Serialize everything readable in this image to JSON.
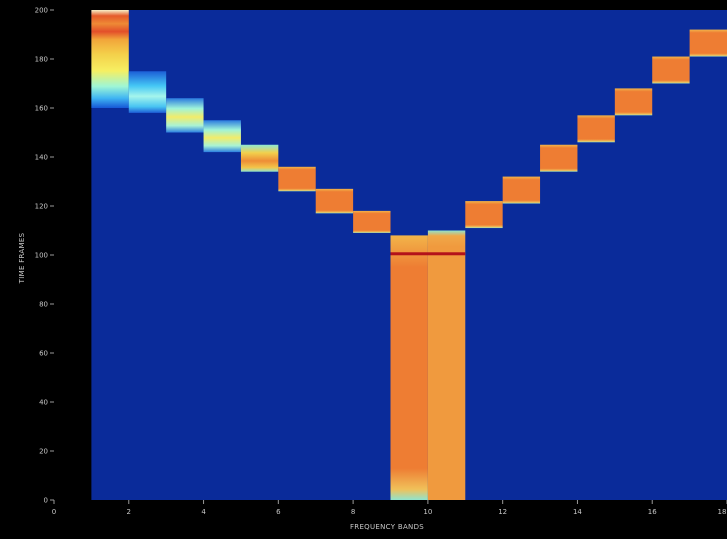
{
  "chart_data": {
    "type": "heatmap",
    "title": "",
    "xlabel": "FREQUENCY BANDS",
    "ylabel": "TIME FRAMES",
    "xlim": [
      0,
      18
    ],
    "ylim": [
      0,
      200
    ],
    "x_ticks": [
      "0",
      "2",
      "4",
      "6",
      "8",
      "10",
      "12",
      "14",
      "16",
      "18"
    ],
    "y_ticks": [
      "0",
      "20",
      "40",
      "60",
      "80",
      "100",
      "120",
      "140",
      "160",
      "180",
      "200"
    ],
    "x_tick_values": [
      0,
      2,
      4,
      6,
      8,
      10,
      12,
      14,
      16,
      18
    ],
    "y_tick_values": [
      0,
      20,
      40,
      60,
      80,
      100,
      120,
      140,
      160,
      180,
      200
    ],
    "data_region": {
      "x": [
        1,
        18
      ],
      "y": [
        0,
        200
      ]
    },
    "colors": {
      "background": "#0a2b9a",
      "frame": "#000000",
      "cell": "#ee7d33",
      "cell_light": "#f09a3e",
      "edge": "#8fe4cf",
      "dark_line": "#b3121a"
    },
    "cells": [
      {
        "band": 1,
        "t_start": 160,
        "t_end": 200,
        "style": "gradient-top"
      },
      {
        "band": 2,
        "t_start": 158,
        "t_end": 175,
        "style": "cyan"
      },
      {
        "band": 3,
        "t_start": 150,
        "t_end": 164,
        "style": "cyan-yellow"
      },
      {
        "band": 4,
        "t_start": 142,
        "t_end": 155,
        "style": "cyan-yellow"
      },
      {
        "band": 5,
        "t_start": 134,
        "t_end": 145,
        "style": "yellow-orange"
      },
      {
        "band": 6,
        "t_start": 126,
        "t_end": 136,
        "style": "orange"
      },
      {
        "band": 7,
        "t_start": 117,
        "t_end": 127,
        "style": "orange"
      },
      {
        "band": 8,
        "t_start": 109,
        "t_end": 118,
        "style": "orange"
      },
      {
        "band": 9,
        "t_start": 0,
        "t_end": 108,
        "style": "orange"
      },
      {
        "band": 10,
        "t_start": 0,
        "t_end": 110,
        "style": "orange-light"
      },
      {
        "band": 11,
        "t_start": 111,
        "t_end": 122,
        "style": "orange"
      },
      {
        "band": 12,
        "t_start": 121,
        "t_end": 132,
        "style": "orange"
      },
      {
        "band": 13,
        "t_start": 134,
        "t_end": 145,
        "style": "orange"
      },
      {
        "band": 14,
        "t_start": 146,
        "t_end": 157,
        "style": "orange"
      },
      {
        "band": 15,
        "t_start": 157,
        "t_end": 168,
        "style": "orange"
      },
      {
        "band": 16,
        "t_start": 170,
        "t_end": 181,
        "style": "orange"
      },
      {
        "band": 17,
        "t_start": 181,
        "t_end": 192,
        "style": "orange"
      }
    ],
    "annotations": [
      {
        "type": "hline",
        "band_range": [
          9,
          11
        ],
        "t": 100.5,
        "color": "dark_line"
      }
    ]
  }
}
